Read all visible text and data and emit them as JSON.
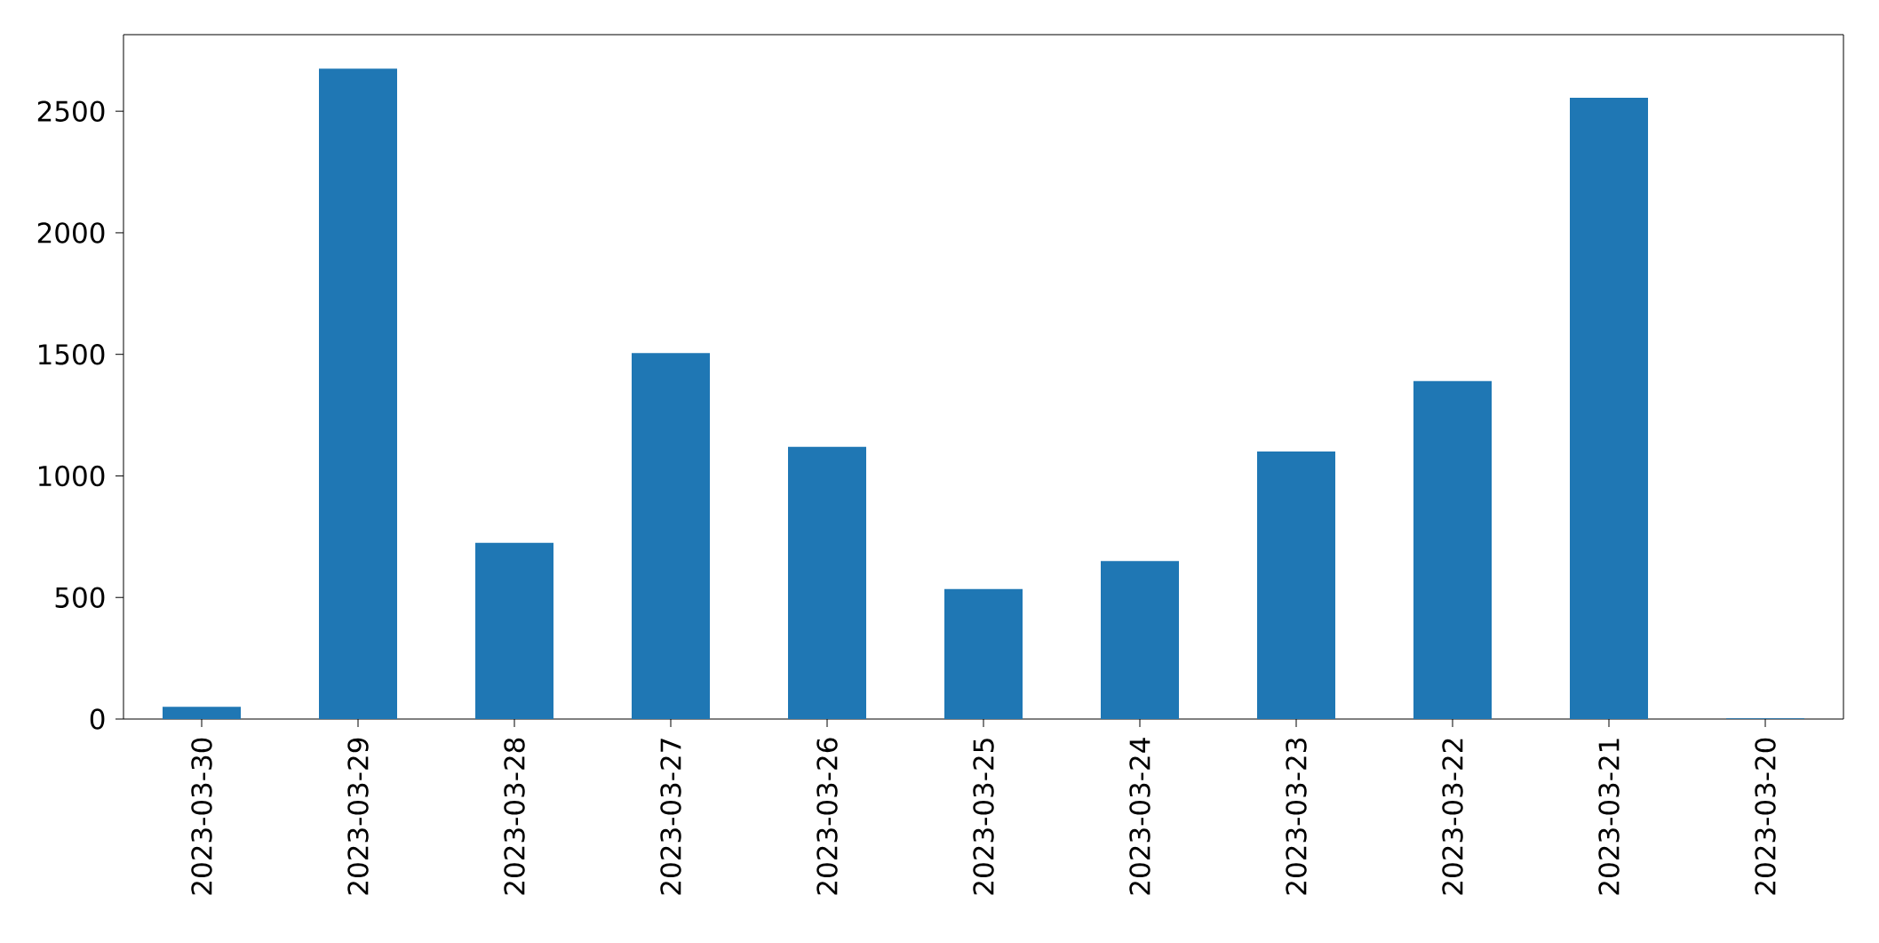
{
  "chart_data": {
    "type": "bar",
    "categories": [
      "2023-03-30",
      "2023-03-29",
      "2023-03-28",
      "2023-03-27",
      "2023-03-26",
      "2023-03-25",
      "2023-03-24",
      "2023-03-23",
      "2023-03-22",
      "2023-03-21",
      "2023-03-20"
    ],
    "values": [
      50,
      2675,
      725,
      1505,
      1120,
      535,
      650,
      1100,
      1390,
      2555,
      3
    ],
    "color": "#1f77b4",
    "ylim": [
      0,
      2815
    ],
    "yticks": [
      0,
      500,
      1000,
      1500,
      2000,
      2500
    ]
  }
}
